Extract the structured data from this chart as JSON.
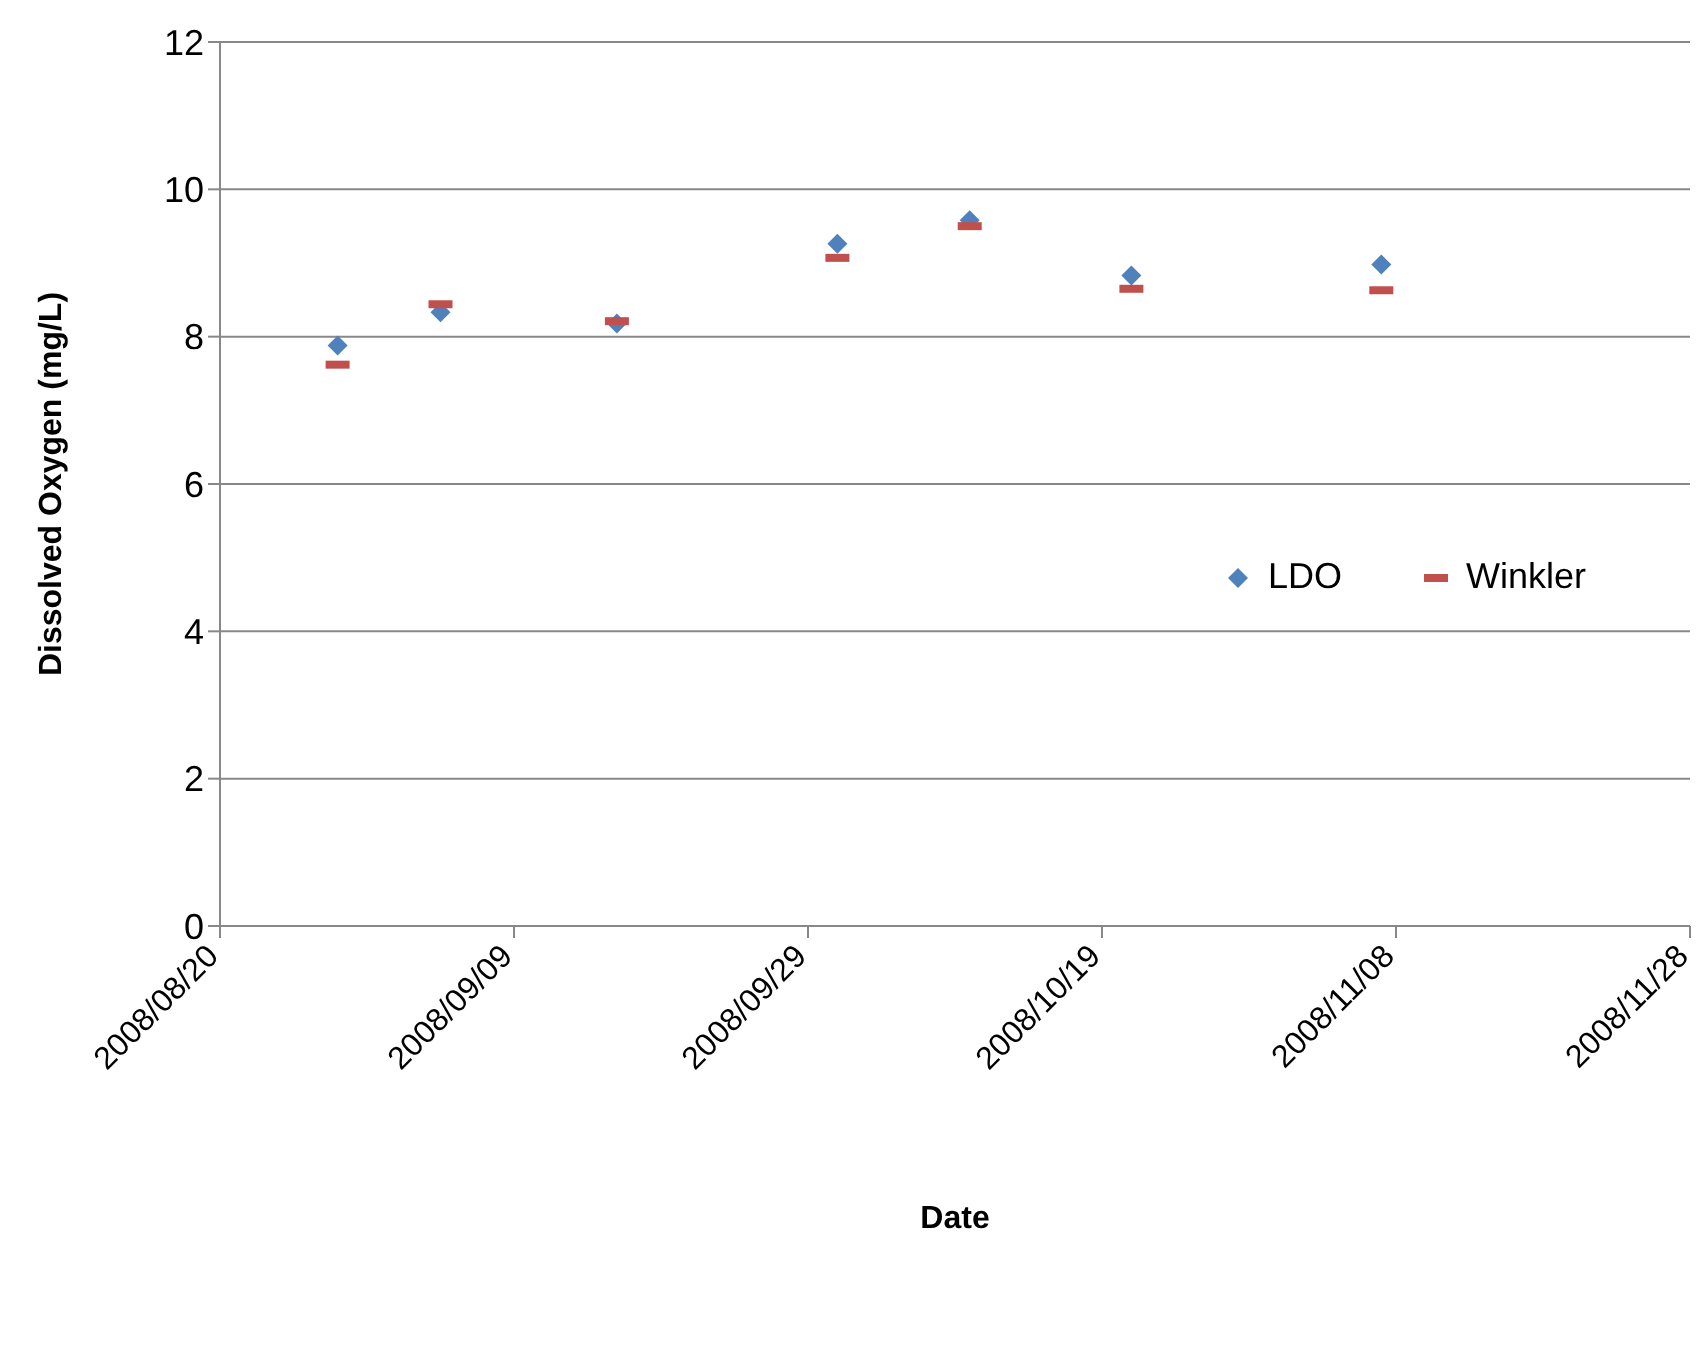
{
  "chart_data": {
    "type": "scatter",
    "xlabel": "Date",
    "ylabel": "Dissolved Oxygen (mg/L)",
    "xlim": [
      "2008-08-20",
      "2008-11-28"
    ],
    "xticks": [
      {
        "value": "2008-08-20",
        "label": "2008/08/20"
      },
      {
        "value": "2008-09-09",
        "label": "2008/09/09"
      },
      {
        "value": "2008-09-29",
        "label": "2008/09/29"
      },
      {
        "value": "2008-10-19",
        "label": "2008/10/19"
      },
      {
        "value": "2008-11-08",
        "label": "2008/11/08"
      },
      {
        "value": "2008-11-28",
        "label": "2008/11/28"
      }
    ],
    "ylim": [
      0,
      12
    ],
    "yticks": [
      0,
      2,
      4,
      6,
      8,
      10,
      12
    ],
    "grid": "y",
    "legend": "right",
    "x": [
      "2008-08-28",
      "2008-09-04",
      "2008-09-16",
      "2008-10-01",
      "2008-10-10",
      "2008-10-21",
      "2008-11-07"
    ],
    "series": [
      {
        "name": "LDO",
        "color": "#4f81bd",
        "marker": "diamond",
        "values": [
          7.88,
          8.33,
          8.18,
          9.26,
          9.58,
          8.83,
          8.98
        ]
      },
      {
        "name": "Winkler",
        "color": "#c0504d",
        "values": [
          7.62,
          8.44,
          8.21,
          9.07,
          9.5,
          8.65,
          8.63
        ]
      }
    ]
  }
}
